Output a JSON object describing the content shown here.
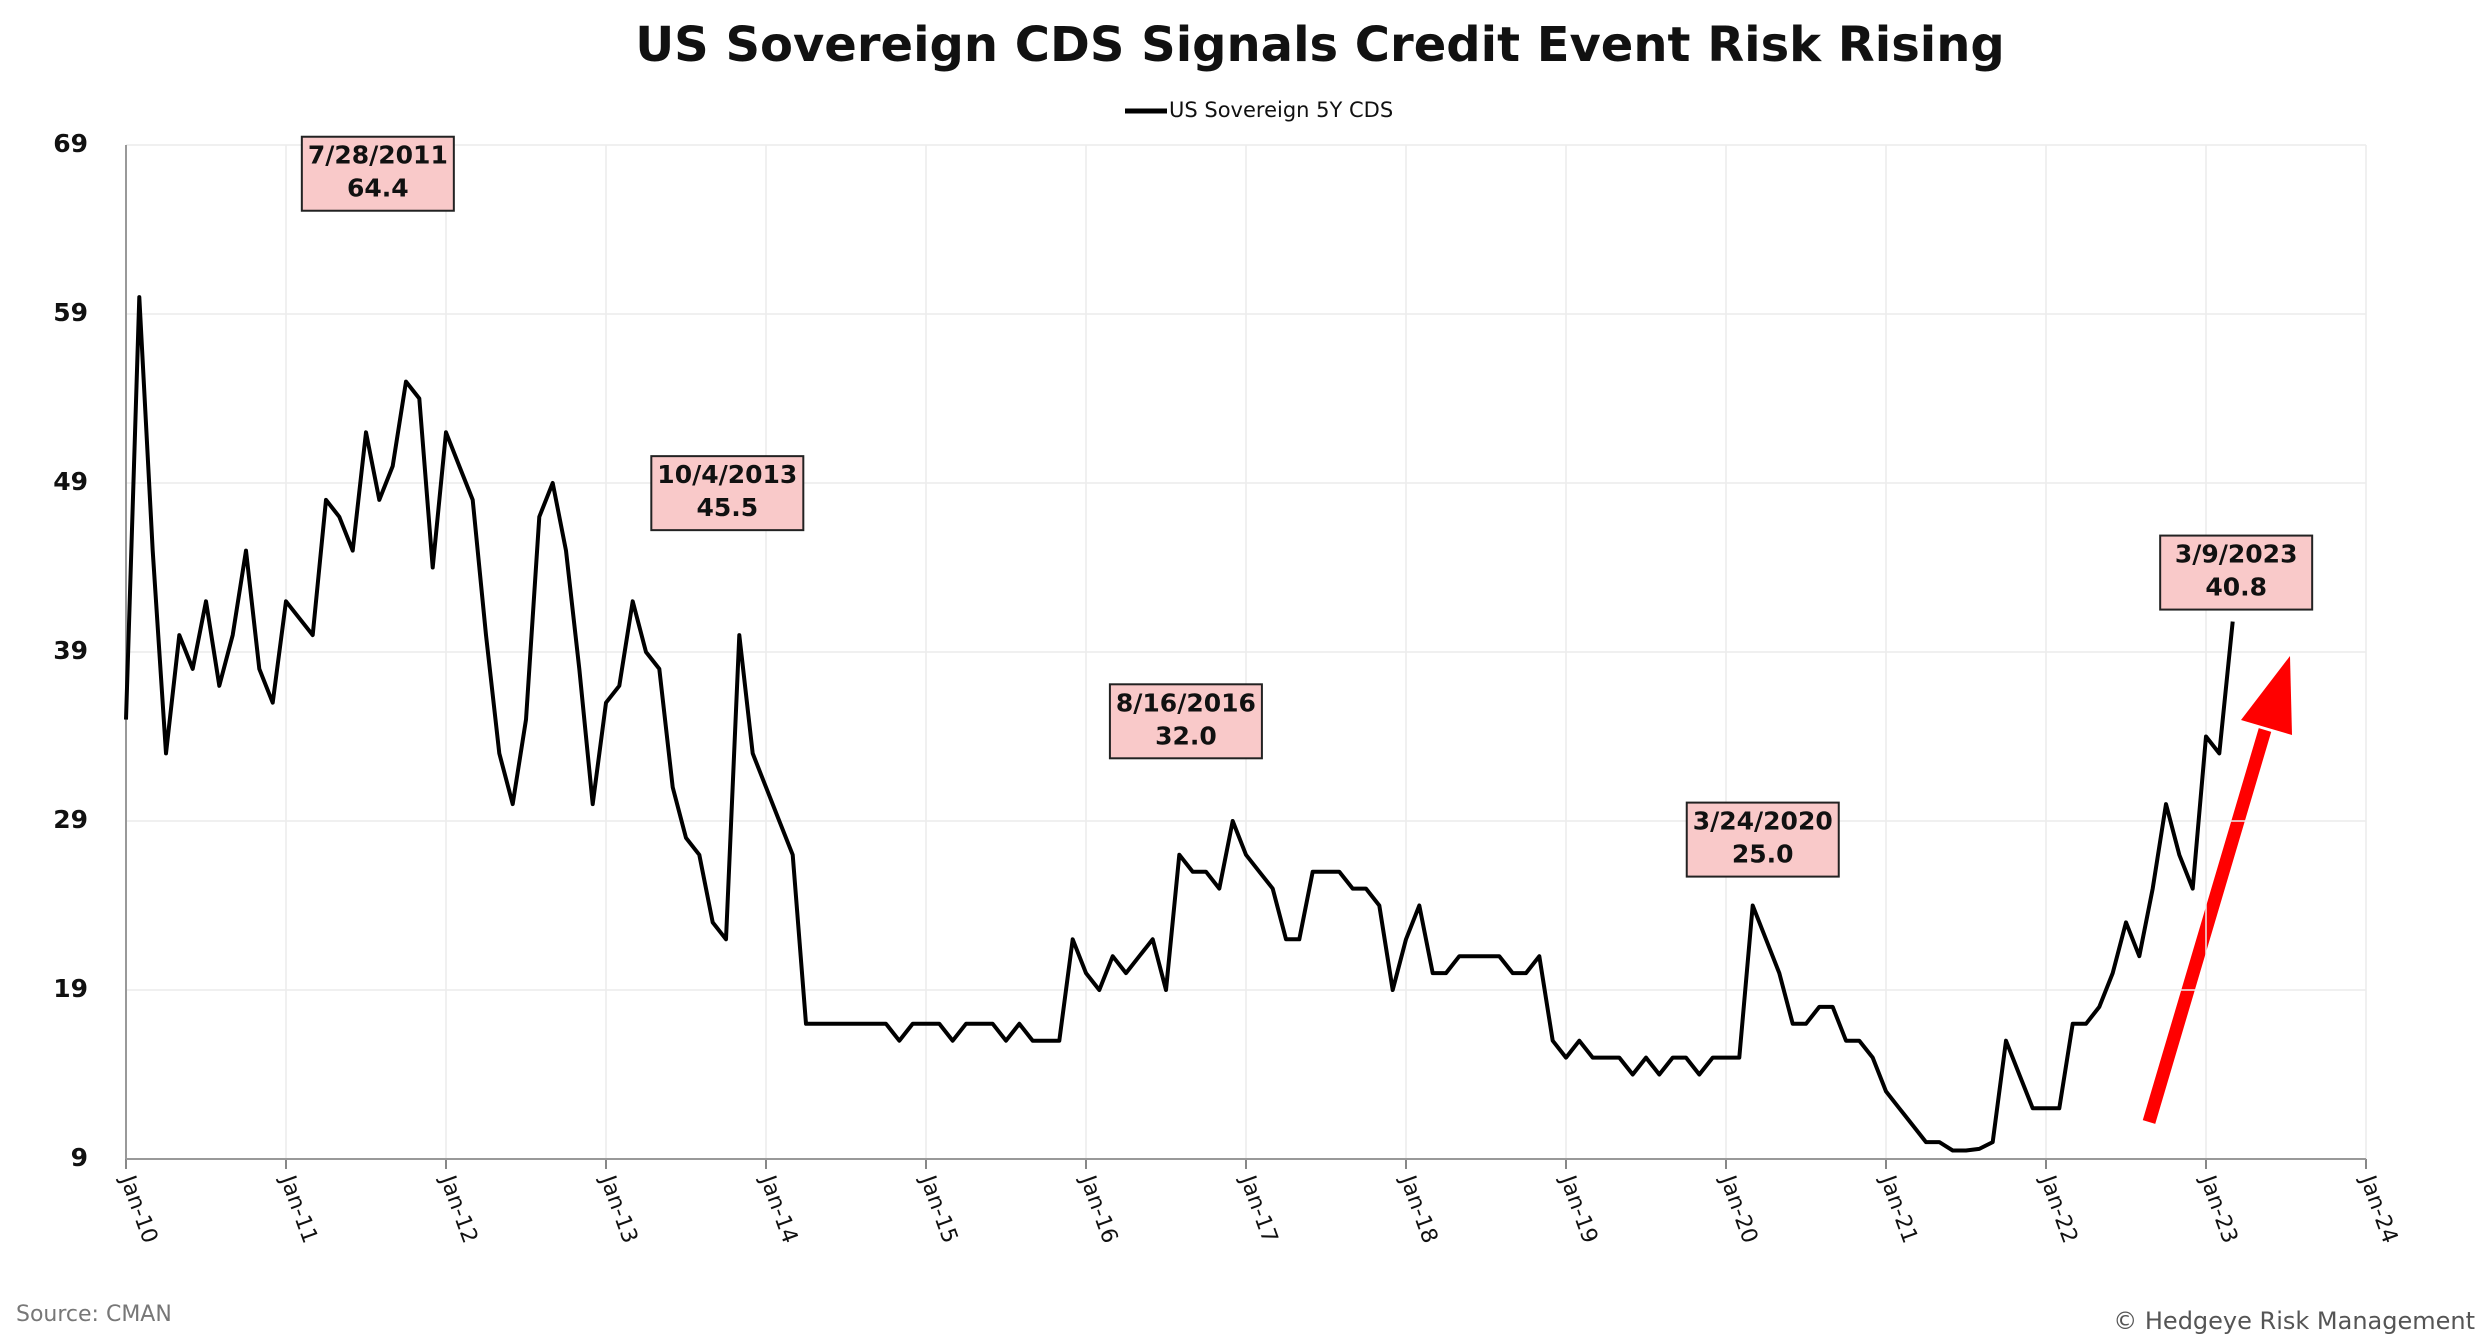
{
  "chart_data": {
    "type": "line",
    "title": "US Sovereign CDS Signals Credit Event Risk Rising",
    "source": "Source: CMAN",
    "copyright": "© Hedgeye Risk Management",
    "grid": true,
    "legend": "top",
    "x": [
      "2010-01",
      "2010-02",
      "2010-03",
      "2010-04",
      "2010-05",
      "2010-06",
      "2010-07",
      "2010-08",
      "2010-09",
      "2010-10",
      "2010-11",
      "2010-12",
      "2011-01",
      "2011-02",
      "2011-03",
      "2011-04",
      "2011-05",
      "2011-06",
      "2011-07",
      "2011-08",
      "2011-09",
      "2011-10",
      "2011-11",
      "2011-12",
      "2012-01",
      "2012-02",
      "2012-03",
      "2012-04",
      "2012-05",
      "2012-06",
      "2012-07",
      "2012-08",
      "2012-09",
      "2012-10",
      "2012-11",
      "2012-12",
      "2013-01",
      "2013-02",
      "2013-03",
      "2013-04",
      "2013-05",
      "2013-06",
      "2013-07",
      "2013-08",
      "2013-09",
      "2013-10",
      "2013-11",
      "2013-12",
      "2014-01",
      "2014-02",
      "2014-03",
      "2014-04",
      "2014-05",
      "2014-06",
      "2014-07",
      "2014-08",
      "2014-09",
      "2014-10",
      "2014-11",
      "2014-12",
      "2015-01",
      "2015-02",
      "2015-03",
      "2015-04",
      "2015-05",
      "2015-06",
      "2015-07",
      "2015-08",
      "2015-09",
      "2015-10",
      "2015-11",
      "2015-12",
      "2016-01",
      "2016-02",
      "2016-03",
      "2016-04",
      "2016-05",
      "2016-06",
      "2016-07",
      "2016-08",
      "2016-09",
      "2016-10",
      "2016-11",
      "2016-12",
      "2017-01",
      "2017-02",
      "2017-03",
      "2017-04",
      "2017-05",
      "2017-06",
      "2017-07",
      "2017-08",
      "2017-09",
      "2017-10",
      "2017-11",
      "2017-12",
      "2018-01",
      "2018-02",
      "2018-03",
      "2018-04",
      "2018-05",
      "2018-06",
      "2018-07",
      "2018-08",
      "2018-09",
      "2018-10",
      "2018-11",
      "2018-12",
      "2019-01",
      "2019-02",
      "2019-03",
      "2019-04",
      "2019-05",
      "2019-06",
      "2019-07",
      "2019-08",
      "2019-09",
      "2019-10",
      "2019-11",
      "2019-12",
      "2020-01",
      "2020-02",
      "2020-03",
      "2020-04",
      "2020-05",
      "2020-06",
      "2020-07",
      "2020-08",
      "2020-09",
      "2020-10",
      "2020-11",
      "2020-12",
      "2021-01",
      "2021-02",
      "2021-03",
      "2021-04",
      "2021-05",
      "2021-06",
      "2021-07",
      "2021-08",
      "2021-09",
      "2021-10",
      "2021-11",
      "2021-12",
      "2022-01",
      "2022-02",
      "2022-03",
      "2022-04",
      "2022-05",
      "2022-06",
      "2022-07",
      "2022-08",
      "2022-09",
      "2022-10",
      "2022-11",
      "2022-12",
      "2023-01",
      "2023-02",
      "2023-03"
    ],
    "series": [
      {
        "name": "US Sovereign 5Y CDS",
        "color": "#000000",
        "values": [
          35,
          60,
          45,
          33,
          40,
          38,
          42,
          37,
          40,
          45,
          38,
          36,
          42,
          41,
          40,
          48,
          47,
          45,
          52,
          48,
          50,
          55,
          54,
          44,
          52,
          50,
          48,
          40,
          33,
          30,
          35,
          47,
          49,
          45,
          38,
          30,
          36,
          37,
          42,
          39,
          38,
          31,
          28,
          27,
          23,
          22,
          40,
          33,
          31,
          29,
          27,
          17,
          17,
          17,
          17,
          17,
          17,
          17,
          16,
          17,
          17,
          17,
          16,
          17,
          17,
          17,
          16,
          17,
          16,
          16,
          16,
          22,
          20,
          19,
          21,
          20,
          21,
          22,
          19,
          27,
          26,
          26,
          25,
          29,
          27,
          26,
          25,
          22,
          22,
          26,
          26,
          26,
          25,
          25,
          24,
          19,
          22,
          24,
          20,
          20,
          21,
          21,
          21,
          21,
          20,
          20,
          21,
          16,
          15,
          16,
          15,
          15,
          15,
          14,
          15,
          14,
          15,
          15,
          14,
          15,
          15,
          15,
          24,
          22,
          20,
          17,
          17,
          18,
          18,
          16,
          16,
          15,
          13,
          12,
          11,
          10,
          10,
          9.5,
          9.5,
          9.6,
          10,
          16,
          14,
          12,
          12,
          12,
          17,
          17,
          18,
          20,
          23,
          21,
          25,
          30,
          27,
          25,
          34,
          33,
          40.8
        ]
      }
    ],
    "xlim": [
      "2010-01",
      "2024-01"
    ],
    "xticks": [
      {
        "value": "2010-01",
        "label": "Jan-10"
      },
      {
        "value": "2011-01",
        "label": "Jan-11"
      },
      {
        "value": "2012-01",
        "label": "Jan-12"
      },
      {
        "value": "2013-01",
        "label": "Jan-13"
      },
      {
        "value": "2014-01",
        "label": "Jan-14"
      },
      {
        "value": "2015-01",
        "label": "Jan-15"
      },
      {
        "value": "2016-01",
        "label": "Jan-16"
      },
      {
        "value": "2017-01",
        "label": "Jan-17"
      },
      {
        "value": "2018-01",
        "label": "Jan-18"
      },
      {
        "value": "2019-01",
        "label": "Jan-19"
      },
      {
        "value": "2020-01",
        "label": "Jan-20"
      },
      {
        "value": "2021-01",
        "label": "Jan-21"
      },
      {
        "value": "2022-01",
        "label": "Jan-22"
      },
      {
        "value": "2023-01",
        "label": "Jan-23"
      },
      {
        "value": "2024-01",
        "label": "Jan-24"
      }
    ],
    "ylim": [
      9,
      69
    ],
    "yticks": [
      9,
      19,
      29,
      39,
      49,
      59,
      69
    ],
    "annotations": [
      {
        "date": "7/28/2011",
        "value": 64.4,
        "value_label": "64.4"
      },
      {
        "date": "10/4/2013",
        "value": 45.5,
        "value_label": "45.5"
      },
      {
        "date": "8/16/2016",
        "value": 32.0,
        "value_label": "32.0"
      },
      {
        "date": "3/24/2020",
        "value": 25.0,
        "value_label": "25.0"
      },
      {
        "date": "3/9/2023",
        "value": 40.8,
        "value_label": "40.8"
      }
    ]
  }
}
